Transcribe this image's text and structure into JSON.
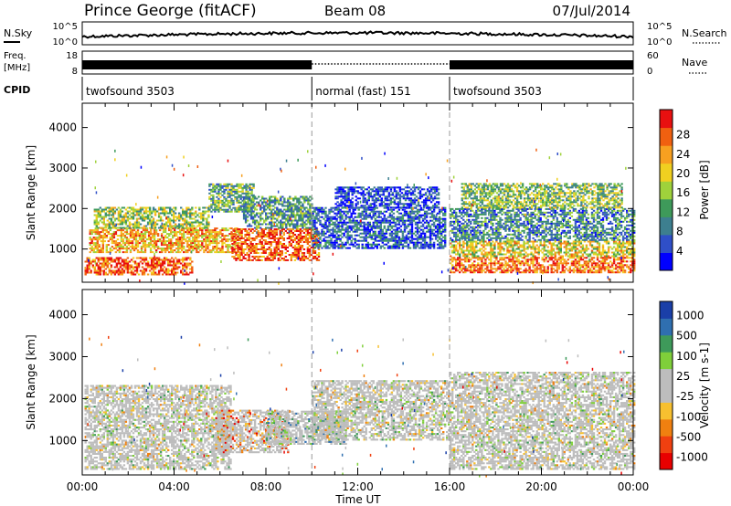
{
  "header": {
    "station": "Prince George (fitACF)",
    "beam": "Beam 08",
    "date": "07/Jul/2014"
  },
  "noise_panel": {
    "left_label": "N.Sky",
    "right_label": "N.Search",
    "left_ticks": [
      "10^5",
      "10^0"
    ],
    "right_ticks": [
      "10^5",
      "10^0"
    ]
  },
  "freq_panel": {
    "left_label_1": "Freq.",
    "left_label_2": "[MHz]",
    "left_ticks": [
      "18",
      "8"
    ],
    "right_label": "Nave",
    "right_ticks": [
      "60",
      "0"
    ]
  },
  "cpid_panel": {
    "label": "CPID",
    "segments": [
      {
        "name": "twofsound 3503",
        "start_h": 0,
        "end_h": 10
      },
      {
        "name": "normal (fast) 151",
        "start_h": 10,
        "end_h": 16
      },
      {
        "name": "twofsound 3503",
        "start_h": 16,
        "end_h": 24
      }
    ]
  },
  "time_axis": {
    "label": "Time UT",
    "ticks": [
      "00:00",
      "04:00",
      "08:00",
      "12:00",
      "16:00",
      "20:00",
      "00:00"
    ]
  },
  "colors": {
    "power_scale": [
      "#0000ff",
      "#2f4fc8",
      "#3d7f8f",
      "#3e9a5a",
      "#9fd23b",
      "#f0d020",
      "#f7a020",
      "#f06010",
      "#e81010"
    ],
    "velocity_scale": [
      "#1a3fa8",
      "#2f6fb0",
      "#3e9a5a",
      "#7fcf3a",
      "#bdbdbd",
      "#bdbdbd",
      "#f7c030",
      "#f08010",
      "#f04010",
      "#e80000"
    ]
  },
  "chart_data": [
    {
      "type": "heatmap",
      "name": "power",
      "ylabel": "Slant Range [km]",
      "xlabel": "",
      "x_range_hours": [
        0,
        24
      ],
      "ylim": [
        180,
        4600
      ],
      "yticks": [
        1000,
        2000,
        3000,
        4000
      ],
      "colorbar": {
        "label": "Power [dB]",
        "ticks": [
          "4",
          "8",
          "12",
          "16",
          "20",
          "24",
          "28"
        ]
      },
      "bands": [
        {
          "t0": 0.1,
          "t1": 4.8,
          "r0": 350,
          "r1": 800,
          "level": 0.85
        },
        {
          "t0": 0.3,
          "t1": 6.8,
          "r0": 900,
          "r1": 1500,
          "level": 0.7
        },
        {
          "t0": 0.5,
          "t1": 5.5,
          "r0": 1500,
          "r1": 2000,
          "level": 0.5
        },
        {
          "t0": 5.5,
          "t1": 7.5,
          "r0": 1900,
          "r1": 2600,
          "level": 0.4
        },
        {
          "t0": 6.5,
          "t1": 10.3,
          "r0": 700,
          "r1": 1500,
          "level": 0.85
        },
        {
          "t0": 7.0,
          "t1": 10.0,
          "r0": 1500,
          "r1": 2300,
          "level": 0.35
        },
        {
          "t0": 10.0,
          "t1": 15.8,
          "r0": 1000,
          "r1": 2000,
          "level": 0.2
        },
        {
          "t0": 11.0,
          "t1": 15.5,
          "r0": 2000,
          "r1": 2500,
          "level": 0.15
        },
        {
          "t0": 16.0,
          "t1": 24.0,
          "r0": 400,
          "r1": 800,
          "level": 0.8
        },
        {
          "t0": 16.0,
          "t1": 24.0,
          "r0": 800,
          "r1": 1200,
          "level": 0.6
        },
        {
          "t0": 16.0,
          "t1": 24.0,
          "r0": 1200,
          "r1": 2000,
          "level": 0.3
        },
        {
          "t0": 16.5,
          "t1": 23.5,
          "r0": 2000,
          "r1": 2600,
          "level": 0.45
        }
      ]
    },
    {
      "type": "heatmap",
      "name": "velocity",
      "ylabel": "Slant Range [km]",
      "xlabel": "Time UT",
      "x_range_hours": [
        0,
        24
      ],
      "ylim": [
        180,
        4600
      ],
      "yticks": [
        1000,
        2000,
        3000,
        4000
      ],
      "colorbar": {
        "label": "Velocity [m s-1]",
        "ticks": [
          "1000",
          "500",
          "100",
          "25",
          "-25",
          "-100",
          "-500",
          "-1000"
        ]
      },
      "bands": [
        {
          "t0": 0.1,
          "t1": 6.5,
          "r0": 300,
          "r1": 2300,
          "level": 0.5
        },
        {
          "t0": 5.8,
          "t1": 9.0,
          "r0": 700,
          "r1": 1700,
          "level": 0.7
        },
        {
          "t0": 8.0,
          "t1": 11.5,
          "r0": 900,
          "r1": 1700,
          "level": 0.35
        },
        {
          "t0": 10.0,
          "t1": 16.0,
          "r0": 1000,
          "r1": 2400,
          "level": 0.5
        },
        {
          "t0": 16.0,
          "t1": 24.0,
          "r0": 300,
          "r1": 2600,
          "level": 0.5
        }
      ]
    }
  ]
}
